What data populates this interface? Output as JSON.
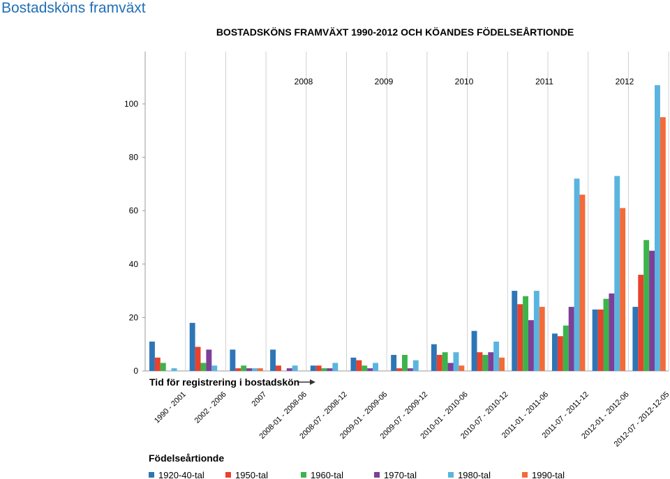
{
  "page": {
    "heading": "Bostadsköns framväxt"
  },
  "chart_data": {
    "type": "bar",
    "title": "BOSTADSKÖNS FRAMVÄXT 1990-2012 OCH KÖANDES FÖDELSEÅRTIONDE",
    "xlabel": "Tid för registrering i bostadskön",
    "ylabel": "",
    "legend_title": "Födelseårtionde",
    "legend_position": "bottom",
    "grid": false,
    "ylim": [
      0,
      110
    ],
    "yticks": [
      0,
      20,
      40,
      60,
      80,
      100
    ],
    "year_headers": [
      "2008",
      "2009",
      "2010",
      "2011",
      "2012"
    ],
    "categories": [
      "1990 - 2001",
      "2002 - 2006",
      "2007",
      "2008-01 - 2008-06",
      "2008-07 - 2008-12",
      "2009-01 - 2009-06",
      "2009-07 - 2009-12",
      "2010-01 - 2010-06",
      "2010-07 - 2010-12",
      "2011-01 - 2011-06",
      "2011-07 - 2011-12",
      "2012-01 - 2012-06",
      "2012-07 - 2012-12-05"
    ],
    "series": [
      {
        "name": "1920-40-tal",
        "color": "#2e75b6",
        "values": [
          11,
          18,
          8,
          8,
          2,
          5,
          6,
          10,
          15,
          30,
          14,
          23,
          24
        ]
      },
      {
        "name": "1950-tal",
        "color": "#e8412c",
        "values": [
          5,
          9,
          1,
          2,
          2,
          4,
          1,
          6,
          7,
          25,
          13,
          23,
          36
        ]
      },
      {
        "name": "1960-tal",
        "color": "#3cb44b",
        "values": [
          3,
          3,
          2,
          0,
          1,
          2,
          6,
          7,
          6,
          28,
          17,
          27,
          49
        ]
      },
      {
        "name": "1970-tal",
        "color": "#7d3f98",
        "values": [
          0,
          8,
          1,
          1,
          1,
          1,
          1,
          3,
          7,
          19,
          24,
          29,
          45
        ]
      },
      {
        "name": "1980-tal",
        "color": "#5ab4e0",
        "values": [
          1,
          2,
          1,
          2,
          3,
          3,
          4,
          7,
          11,
          30,
          72,
          73,
          107
        ]
      },
      {
        "name": "1990-tal",
        "color": "#f26b38",
        "values": [
          0,
          0,
          1,
          0,
          0,
          0,
          0,
          2,
          5,
          24,
          66,
          61,
          95
        ]
      }
    ]
  }
}
